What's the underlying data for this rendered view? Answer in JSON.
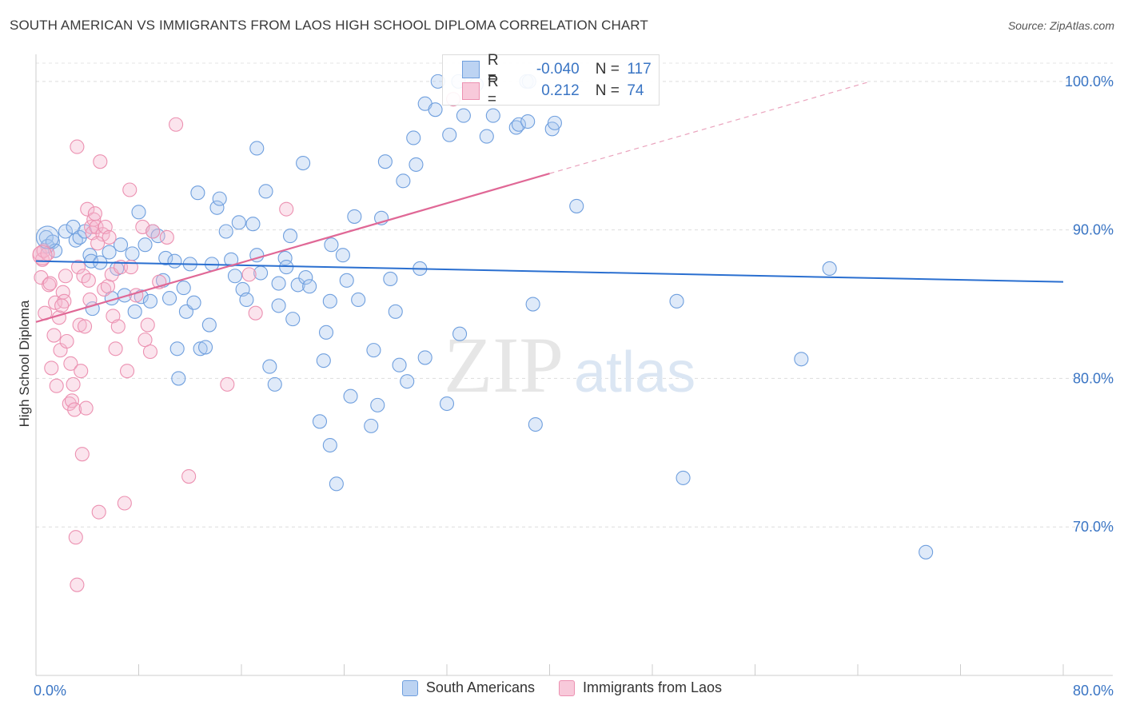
{
  "header": {
    "title": "SOUTH AMERICAN VS IMMIGRANTS FROM LAOS HIGH SCHOOL DIPLOMA CORRELATION CHART",
    "source": "Source: ZipAtlas.com"
  },
  "watermark": {
    "zip": "ZIP",
    "atlas": "atlas"
  },
  "stats": {
    "blue": {
      "r_label": "R =",
      "r_value": "-0.040",
      "n_label": "N =",
      "n_value": "117"
    },
    "pink": {
      "r_label": "R =",
      "r_value": "0.212",
      "n_label": "N =",
      "n_value": "74"
    }
  },
  "colors": {
    "blue": "#6f9fde",
    "pink": "#ec91b1",
    "blue_line": "#2a6fd0",
    "pink_line": "#e06896"
  },
  "chart_data": {
    "type": "scatter",
    "title": "SOUTH AMERICAN VS IMMIGRANTS FROM LAOS HIGH SCHOOL DIPLOMA CORRELATION CHART",
    "xlabel": "",
    "ylabel": "High School Diploma",
    "xlim": [
      0,
      80
    ],
    "ylim": [
      60,
      101.5
    ],
    "x_tick_labels": [
      {
        "value": 0,
        "label": "0.0%"
      },
      {
        "value": 80,
        "label": "80.0%"
      }
    ],
    "y_ticks": [
      {
        "value": 70,
        "label": "70.0%"
      },
      {
        "value": 80,
        "label": "80.0%"
      },
      {
        "value": 90,
        "label": "90.0%"
      },
      {
        "value": 100,
        "label": "100.0%"
      }
    ],
    "x_minor_ticks": [
      8,
      16,
      24,
      32,
      40,
      48,
      56,
      64,
      72,
      80
    ],
    "series": [
      {
        "name": "South Americans",
        "color": "#6f9fde",
        "trend": {
          "x0": 0,
          "y0": 87.9,
          "x1": 80,
          "y1": 86.5
        },
        "points": [
          [
            0.8,
            89.5
          ],
          [
            0.9,
            88.9
          ],
          [
            1.3,
            89.2
          ],
          [
            1.5,
            88.6
          ],
          [
            2.3,
            89.9
          ],
          [
            2.9,
            90.2
          ],
          [
            3.1,
            89.3
          ],
          [
            3.4,
            89.5
          ],
          [
            3.8,
            89.9
          ],
          [
            4.2,
            88.3
          ],
          [
            4.3,
            87.9
          ],
          [
            4.4,
            84.7
          ],
          [
            5.0,
            87.8
          ],
          [
            5.7,
            88.5
          ],
          [
            5.9,
            85.4
          ],
          [
            6.3,
            87.4
          ],
          [
            6.6,
            89.0
          ],
          [
            6.9,
            85.6
          ],
          [
            7.5,
            88.4
          ],
          [
            7.7,
            84.5
          ],
          [
            8.0,
            91.2
          ],
          [
            8.2,
            85.5
          ],
          [
            8.5,
            89.0
          ],
          [
            8.9,
            85.2
          ],
          [
            9.1,
            89.9
          ],
          [
            9.5,
            89.6
          ],
          [
            9.9,
            86.6
          ],
          [
            10.1,
            88.1
          ],
          [
            10.4,
            85.4
          ],
          [
            10.8,
            87.9
          ],
          [
            11.1,
            80.0
          ],
          [
            11.5,
            86.1
          ],
          [
            11.7,
            84.5
          ],
          [
            12.0,
            87.7
          ],
          [
            12.3,
            85.1
          ],
          [
            12.6,
            92.5
          ],
          [
            12.8,
            82.0
          ],
          [
            13.2,
            82.1
          ],
          [
            13.5,
            83.6
          ],
          [
            13.7,
            87.7
          ],
          [
            14.1,
            91.5
          ],
          [
            14.3,
            92.1
          ],
          [
            14.8,
            89.9
          ],
          [
            15.2,
            88.0
          ],
          [
            15.5,
            86.9
          ],
          [
            15.8,
            90.5
          ],
          [
            16.1,
            86.0
          ],
          [
            16.4,
            85.3
          ],
          [
            16.9,
            90.4
          ],
          [
            17.2,
            88.3
          ],
          [
            17.5,
            87.1
          ],
          [
            17.9,
            92.6
          ],
          [
            18.2,
            80.8
          ],
          [
            18.6,
            79.6
          ],
          [
            18.9,
            84.9
          ],
          [
            18.9,
            86.4
          ],
          [
            19.4,
            88.1
          ],
          [
            19.8,
            89.6
          ],
          [
            20.0,
            84.0
          ],
          [
            20.4,
            86.3
          ],
          [
            20.8,
            94.5
          ],
          [
            21.0,
            86.8
          ],
          [
            21.3,
            86.2
          ],
          [
            22.1,
            77.1
          ],
          [
            22.4,
            81.2
          ],
          [
            22.6,
            83.1
          ],
          [
            22.9,
            75.5
          ],
          [
            22.9,
            85.2
          ],
          [
            23.4,
            72.9
          ],
          [
            23.9,
            88.3
          ],
          [
            24.2,
            86.6
          ],
          [
            24.5,
            78.8
          ],
          [
            24.8,
            90.9
          ],
          [
            25.1,
            85.3
          ],
          [
            26.1,
            76.8
          ],
          [
            26.3,
            81.9
          ],
          [
            26.6,
            78.2
          ],
          [
            26.9,
            90.8
          ],
          [
            27.2,
            94.6
          ],
          [
            27.6,
            86.7
          ],
          [
            28.0,
            84.5
          ],
          [
            28.3,
            80.9
          ],
          [
            28.6,
            93.3
          ],
          [
            28.9,
            79.8
          ],
          [
            29.4,
            96.2
          ],
          [
            29.6,
            94.4
          ],
          [
            29.9,
            87.4
          ],
          [
            30.3,
            81.4
          ],
          [
            30.3,
            98.5
          ],
          [
            31.1,
            98.1
          ],
          [
            31.3,
            100.0
          ],
          [
            32.0,
            78.3
          ],
          [
            32.2,
            96.4
          ],
          [
            32.9,
            100.0
          ],
          [
            33.3,
            97.7
          ],
          [
            34.3,
            99.8
          ],
          [
            35.1,
            96.3
          ],
          [
            35.6,
            97.7
          ],
          [
            37.4,
            96.9
          ],
          [
            37.6,
            97.1
          ],
          [
            38.2,
            100.0
          ],
          [
            38.3,
            97.3
          ],
          [
            38.4,
            100.0
          ],
          [
            38.7,
            85.0
          ],
          [
            38.9,
            76.9
          ],
          [
            40.2,
            96.8
          ],
          [
            40.4,
            97.2
          ],
          [
            42.1,
            91.6
          ],
          [
            49.9,
            85.2
          ],
          [
            50.4,
            73.3
          ],
          [
            59.6,
            81.3
          ],
          [
            61.8,
            87.4
          ],
          [
            69.3,
            68.3
          ],
          [
            33.0,
            83.0
          ],
          [
            17.2,
            95.5
          ],
          [
            19.5,
            87.5
          ],
          [
            23.0,
            89.0
          ],
          [
            11.0,
            82.0
          ]
        ]
      },
      {
        "name": "Immigrants from Laos",
        "color": "#ec91b1",
        "trend": {
          "x0": 0,
          "y0": 83.8,
          "x1": 40,
          "y1": 93.8
        },
        "trend_extension": {
          "x0": 40,
          "y0": 93.8,
          "x1": 65,
          "y1": 100.0
        },
        "points": [
          [
            0.3,
            88.4
          ],
          [
            0.4,
            86.8
          ],
          [
            0.5,
            88.0
          ],
          [
            0.6,
            88.6
          ],
          [
            0.7,
            84.4
          ],
          [
            0.9,
            88.4
          ],
          [
            1.0,
            86.3
          ],
          [
            1.1,
            86.4
          ],
          [
            1.2,
            80.7
          ],
          [
            1.4,
            82.9
          ],
          [
            1.5,
            85.1
          ],
          [
            1.6,
            79.5
          ],
          [
            1.8,
            84.1
          ],
          [
            1.9,
            81.9
          ],
          [
            2.1,
            85.8
          ],
          [
            2.2,
            85.2
          ],
          [
            2.3,
            86.9
          ],
          [
            2.4,
            82.5
          ],
          [
            2.6,
            78.3
          ],
          [
            2.7,
            81.0
          ],
          [
            2.8,
            78.5
          ],
          [
            2.9,
            79.6
          ],
          [
            3.0,
            77.9
          ],
          [
            3.1,
            69.3
          ],
          [
            3.2,
            95.6
          ],
          [
            3.3,
            87.5
          ],
          [
            3.4,
            83.6
          ],
          [
            3.5,
            80.5
          ],
          [
            3.6,
            74.9
          ],
          [
            3.7,
            86.9
          ],
          [
            3.8,
            83.5
          ],
          [
            3.9,
            78.0
          ],
          [
            4.0,
            91.4
          ],
          [
            4.1,
            86.6
          ],
          [
            4.2,
            85.3
          ],
          [
            4.3,
            90.2
          ],
          [
            4.4,
            89.8
          ],
          [
            4.5,
            90.7
          ],
          [
            4.6,
            91.1
          ],
          [
            4.7,
            90.2
          ],
          [
            4.9,
            71.0
          ],
          [
            5.0,
            94.6
          ],
          [
            5.2,
            89.7
          ],
          [
            5.3,
            86.0
          ],
          [
            5.4,
            90.2
          ],
          [
            5.6,
            86.2
          ],
          [
            5.7,
            89.5
          ],
          [
            5.9,
            87.0
          ],
          [
            6.0,
            84.2
          ],
          [
            6.2,
            82.0
          ],
          [
            6.4,
            83.5
          ],
          [
            6.6,
            87.5
          ],
          [
            6.9,
            71.6
          ],
          [
            7.1,
            80.5
          ],
          [
            7.3,
            92.7
          ],
          [
            7.4,
            87.5
          ],
          [
            7.8,
            85.6
          ],
          [
            8.3,
            90.2
          ],
          [
            8.5,
            82.6
          ],
          [
            8.7,
            83.6
          ],
          [
            8.9,
            81.8
          ],
          [
            9.1,
            89.9
          ],
          [
            9.6,
            86.5
          ],
          [
            10.2,
            89.5
          ],
          [
            10.9,
            97.1
          ],
          [
            11.9,
            73.4
          ],
          [
            14.9,
            79.6
          ],
          [
            16.6,
            87.0
          ],
          [
            17.1,
            84.4
          ],
          [
            19.5,
            91.4
          ],
          [
            32.5,
            98.8
          ],
          [
            3.2,
            66.1
          ],
          [
            2.0,
            84.9
          ],
          [
            4.8,
            89.1
          ]
        ]
      }
    ]
  }
}
